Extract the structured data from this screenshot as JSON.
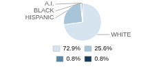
{
  "chart_data": {
    "type": "pie",
    "categories": [
      "WHITE",
      "HISPANIC",
      "BLACK",
      "A.I."
    ],
    "values": [
      72.9,
      25.6,
      0.8,
      0.8
    ],
    "value_labels": [
      "72.9%",
      "25.6%",
      "0.8%",
      "0.8%"
    ],
    "colors": [
      "#d6e4f0",
      "#a8c4d8",
      "#5b849e",
      "#1c3a52"
    ],
    "legend": "bottom"
  }
}
